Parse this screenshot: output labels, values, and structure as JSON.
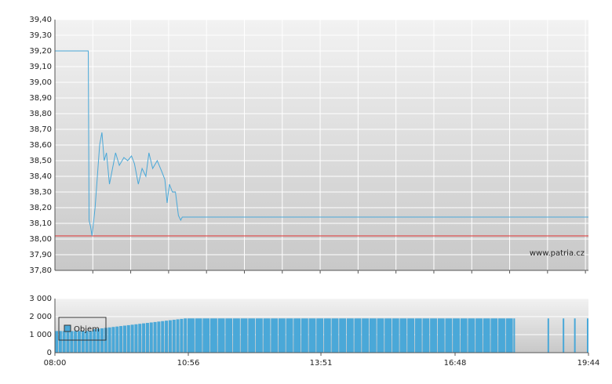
{
  "chart_data": [
    {
      "type": "line",
      "watermark": "www.patria.cz",
      "xlim": [
        480,
        1184
      ],
      "xgrid": [
        530,
        580,
        630,
        680,
        730,
        780,
        830,
        880,
        930,
        980,
        1030,
        1080,
        1130,
        1180
      ],
      "ylim": [
        37.8,
        39.4
      ],
      "yticks": [
        {
          "value": 37.8,
          "label": "37,80"
        },
        {
          "value": 37.9,
          "label": "37,90"
        },
        {
          "value": 38.0,
          "label": "38,00"
        },
        {
          "value": 38.1,
          "label": "38,10"
        },
        {
          "value": 38.2,
          "label": "38,20"
        },
        {
          "value": 38.3,
          "label": "38,30"
        },
        {
          "value": 38.4,
          "label": "38,40"
        },
        {
          "value": 38.5,
          "label": "38,50"
        },
        {
          "value": 38.6,
          "label": "38,60"
        },
        {
          "value": 38.7,
          "label": "38,70"
        },
        {
          "value": 38.8,
          "label": "38,80"
        },
        {
          "value": 38.9,
          "label": "38,90"
        },
        {
          "value": 39.0,
          "label": "39,00"
        },
        {
          "value": 39.1,
          "label": "39,10"
        },
        {
          "value": 39.2,
          "label": "39,20"
        },
        {
          "value": 39.3,
          "label": "39,30"
        },
        {
          "value": 39.4,
          "label": "39,40"
        }
      ],
      "reference_line": {
        "value": 38.02,
        "color": "#e03030"
      },
      "series": [
        {
          "color": "#4aa8d8",
          "x": [
            480,
            524,
            525,
            527,
            529,
            533,
            536,
            539,
            542,
            545,
            548,
            552,
            556,
            560,
            565,
            571,
            576,
            581,
            585,
            590,
            595,
            600,
            604,
            609,
            615,
            621,
            625,
            628,
            631,
            635,
            639,
            643,
            646,
            648,
            1184
          ],
          "values": [
            39.2,
            39.2,
            38.12,
            38.08,
            38.02,
            38.2,
            38.4,
            38.6,
            38.68,
            38.5,
            38.55,
            38.35,
            38.45,
            38.55,
            38.47,
            38.52,
            38.5,
            38.53,
            38.48,
            38.35,
            38.45,
            38.4,
            38.55,
            38.45,
            38.5,
            38.43,
            38.38,
            38.23,
            38.35,
            38.3,
            38.3,
            38.15,
            38.12,
            38.14,
            38.14
          ]
        }
      ]
    },
    {
      "type": "bar",
      "legend": "Objem",
      "color": "#4aa8d8",
      "xlim": [
        480,
        1184
      ],
      "xticks": [
        {
          "value": 480,
          "label": "08:00"
        },
        {
          "value": 656,
          "label": "10:56"
        },
        {
          "value": 831,
          "label": "13:51"
        },
        {
          "value": 1008,
          "label": "16:48"
        },
        {
          "value": 1184,
          "label": "19:44"
        }
      ],
      "ylim": [
        0,
        3000
      ],
      "yticks": [
        0,
        {
          "value": 1000,
          "label": "1 000"
        },
        {
          "value": 2000,
          "label": "2 000"
        },
        {
          "value": 3000,
          "label": "3 000"
        }
      ],
      "x": [
        480,
        485,
        490,
        495,
        500,
        505,
        510,
        515,
        520,
        525,
        530,
        535,
        540,
        545,
        550,
        555,
        560,
        565,
        570,
        575,
        580,
        585,
        590,
        595,
        600,
        605,
        610,
        615,
        620,
        625,
        630,
        635,
        640,
        645,
        650,
        655,
        665,
        675,
        685,
        695,
        705,
        715,
        725,
        735,
        745,
        755,
        765,
        775,
        785,
        795,
        805,
        815,
        825,
        835,
        845,
        855,
        865,
        875,
        885,
        895,
        905,
        915,
        925,
        935,
        945,
        955,
        965,
        975,
        985,
        995,
        1005,
        1015,
        1025,
        1035,
        1045,
        1055,
        1065,
        1075,
        1085,
        1130,
        1150,
        1165,
        1184
      ],
      "values": [
        1200,
        1200,
        1200,
        1200,
        1200,
        1200,
        1200,
        1200,
        1200,
        1200,
        1300,
        1325,
        1350,
        1375,
        1400,
        1425,
        1450,
        1475,
        1500,
        1525,
        1550,
        1575,
        1600,
        1625,
        1650,
        1675,
        1700,
        1725,
        1750,
        1775,
        1800,
        1825,
        1850,
        1875,
        1900,
        1900,
        1900,
        1900,
        1900,
        1900,
        1900,
        1900,
        1900,
        1900,
        1900,
        1900,
        1900,
        1900,
        1900,
        1900,
        1900,
        1900,
        1900,
        1900,
        1900,
        1900,
        1900,
        1900,
        1900,
        1900,
        1900,
        1900,
        1900,
        1900,
        1900,
        1900,
        1900,
        1900,
        1900,
        1900,
        1900,
        1900,
        1900,
        1900,
        1900,
        1900,
        1900,
        1900,
        1900,
        1900,
        1900,
        1900,
        1900
      ]
    }
  ]
}
